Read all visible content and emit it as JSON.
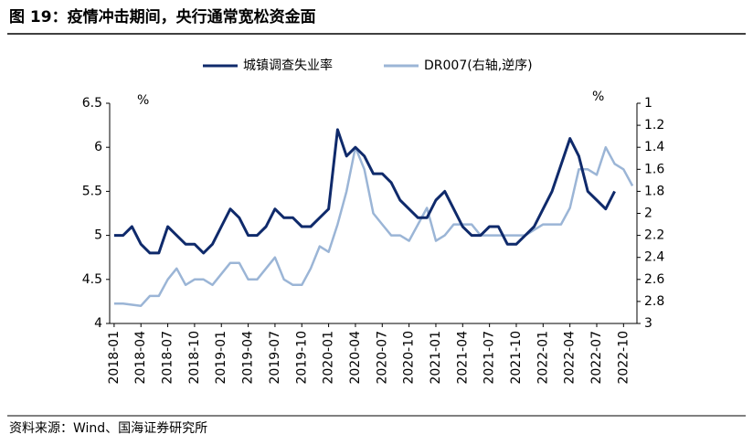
{
  "chart_data": {
    "type": "line",
    "title": "图 19：疫情冲击期间，央行通常宽松资金面",
    "source": "资料来源：Wind、国海证券研究所",
    "y_label": "%",
    "y2_label": "%",
    "categories": [
      "2018-01",
      null,
      null,
      "2018-04",
      null,
      null,
      "2018-07",
      null,
      null,
      "2018-10",
      null,
      null,
      "2019-01",
      null,
      null,
      "2019-04",
      null,
      null,
      "2019-07",
      null,
      null,
      "2019-10",
      null,
      null,
      "2020-01",
      null,
      null,
      "2020-04",
      null,
      null,
      "2020-07",
      null,
      null,
      "2020-10",
      null,
      null,
      "2021-01",
      null,
      null,
      "2021-04",
      null,
      null,
      "2021-07",
      null,
      null,
      "2021-10",
      null,
      null,
      "2022-01",
      null,
      null,
      "2022-04",
      null,
      null,
      "2022-07",
      null,
      null,
      "2022-10",
      null
    ],
    "series": [
      {
        "name": "城镇调查失业率",
        "color": "#0f2a6b",
        "values": [
          5.0,
          5.0,
          5.1,
          4.9,
          4.8,
          4.8,
          5.1,
          5.0,
          4.9,
          4.9,
          4.8,
          4.9,
          5.1,
          5.3,
          5.2,
          5.0,
          5.0,
          5.1,
          5.3,
          5.2,
          5.2,
          5.1,
          5.1,
          5.2,
          5.3,
          6.2,
          5.9,
          6.0,
          5.9,
          5.7,
          5.7,
          5.6,
          5.4,
          5.3,
          5.2,
          5.2,
          5.4,
          5.5,
          5.3,
          5.1,
          5.0,
          5.0,
          5.1,
          5.1,
          4.9,
          4.9,
          5.0,
          5.1,
          5.3,
          5.5,
          5.8,
          6.1,
          5.9,
          5.5,
          5.4,
          5.3,
          5.5,
          null,
          null
        ]
      },
      {
        "name": "DR007(右轴,逆序)",
        "color": "#9bb5d6",
        "axis": "y2",
        "values": [
          2.82,
          2.82,
          2.83,
          2.84,
          2.75,
          2.75,
          2.6,
          2.5,
          2.65,
          2.6,
          2.6,
          2.65,
          2.55,
          2.45,
          2.45,
          2.6,
          2.6,
          2.5,
          2.4,
          2.6,
          2.65,
          2.65,
          2.5,
          2.3,
          2.35,
          2.1,
          1.8,
          1.4,
          1.6,
          2.0,
          2.1,
          2.2,
          2.2,
          2.25,
          2.1,
          1.95,
          2.25,
          2.2,
          2.1,
          2.1,
          2.1,
          2.2,
          2.2,
          2.2,
          2.2,
          2.2,
          2.2,
          2.15,
          2.1,
          2.1,
          2.1,
          1.95,
          1.6,
          1.6,
          1.65,
          1.4,
          1.55,
          1.6,
          1.75
        ]
      }
    ],
    "ylim": [
      4,
      6.5
    ],
    "yticks": [
      4,
      4.5,
      5,
      5.5,
      6,
      6.5
    ],
    "y2lim": [
      3,
      1
    ],
    "y2_inverted": true,
    "y2ticks": [
      1,
      1.2,
      1.4,
      1.6,
      1.8,
      2,
      2.2,
      2.4,
      2.6,
      2.8,
      3
    ],
    "legend": "top",
    "grid": false
  }
}
